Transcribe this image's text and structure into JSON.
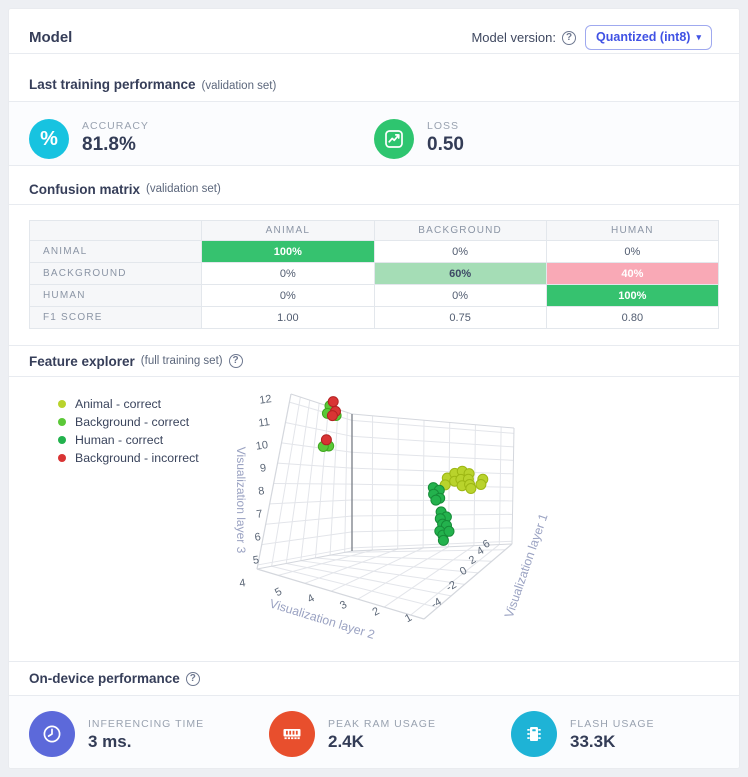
{
  "header": {
    "title": "Model",
    "version_label": "Model version:",
    "version_value": "Quantized (int8)"
  },
  "training": {
    "title": "Last training performance",
    "subtitle": "(validation set)"
  },
  "metrics": [
    {
      "label": "ACCURACY",
      "value": "81.8%",
      "icon": "percent-icon",
      "color": "#17c3e0"
    },
    {
      "label": "LOSS",
      "value": "0.50",
      "icon": "line-chart-icon",
      "color": "#2ec56f"
    }
  ],
  "confusion": {
    "title": "Confusion matrix",
    "subtitle": "(validation set)",
    "columns": [
      "ANIMAL",
      "BACKGROUND",
      "HUMAN"
    ],
    "rows": [
      {
        "label": "ANIMAL",
        "cells": [
          {
            "text": "100%",
            "tone": "green"
          },
          {
            "text": "0%",
            "tone": "plain"
          },
          {
            "text": "0%",
            "tone": "plain"
          }
        ]
      },
      {
        "label": "BACKGROUND",
        "cells": [
          {
            "text": "0%",
            "tone": "plain"
          },
          {
            "text": "60%",
            "tone": "lightgreen"
          },
          {
            "text": "40%",
            "tone": "pink"
          }
        ]
      },
      {
        "label": "HUMAN",
        "cells": [
          {
            "text": "0%",
            "tone": "plain"
          },
          {
            "text": "0%",
            "tone": "plain"
          },
          {
            "text": "100%",
            "tone": "green"
          }
        ]
      },
      {
        "label": "F1 SCORE",
        "cells": [
          {
            "text": "1.00",
            "tone": "plain"
          },
          {
            "text": "0.75",
            "tone": "plain"
          },
          {
            "text": "0.80",
            "tone": "plain"
          }
        ]
      }
    ]
  },
  "feature_explorer": {
    "title": "Feature explorer",
    "subtitle": "(full training set)"
  },
  "device": {
    "title": "On-device performance",
    "metrics": [
      {
        "label": "INFERENCING TIME",
        "value": "3 ms.",
        "icon": "clock-icon",
        "color": "#5c69da"
      },
      {
        "label": "PEAK RAM USAGE",
        "value": "2.4K",
        "icon": "ram-icon",
        "color": "#e84f2d"
      },
      {
        "label": "FLASH USAGE",
        "value": "33.3K",
        "icon": "flash-chip-icon",
        "color": "#1eb3d6"
      }
    ]
  },
  "chart_data": {
    "type": "scatter3d",
    "xlabel": "Visualization layer 1",
    "ylabel": "Visualization layer 2",
    "zlabel": "Visualization layer 3",
    "x_ticks": [
      -4,
      -2,
      0,
      2,
      4,
      6
    ],
    "y_ticks": [
      5,
      4,
      3,
      2,
      1
    ],
    "z_ticks": [
      12,
      11,
      10,
      9,
      8,
      7,
      6,
      5,
      4
    ],
    "series": [
      {
        "name": "Animal - correct",
        "color": "#b9d32c",
        "stroke": "#9db714",
        "points": [
          [
            3.5,
            1.2,
            9.0
          ],
          [
            4.3,
            1.1,
            9.25
          ],
          [
            5.1,
            1.0,
            9.35
          ],
          [
            5.8,
            0.9,
            9.15
          ],
          [
            3.9,
            1.0,
            8.8
          ],
          [
            4.7,
            0.95,
            8.85
          ],
          [
            5.5,
            0.85,
            8.8
          ],
          [
            6.6,
            0.55,
            8.7
          ],
          [
            4.3,
            0.8,
            8.5
          ],
          [
            5.1,
            0.7,
            8.5
          ],
          [
            6.1,
            0.5,
            8.4
          ],
          [
            4.7,
            0.55,
            8.3
          ],
          [
            3.6,
            1.3,
            8.55
          ]
        ]
      },
      {
        "name": "Background - correct",
        "color": "#5bc838",
        "stroke": "#3fa81f",
        "points": [
          [
            -3.5,
            4.6,
            12.2
          ],
          [
            -3.8,
            4.6,
            11.8
          ],
          [
            -2.1,
            4.6,
            11.8
          ],
          [
            -2.75,
            4.6,
            10.2
          ],
          [
            -3.7,
            4.6,
            10.15
          ]
        ]
      },
      {
        "name": "Human - correct",
        "color": "#23b24d",
        "stroke": "#168c38",
        "points": [
          [
            2.5,
            1.5,
            8.45
          ],
          [
            3.5,
            1.5,
            8.2
          ],
          [
            2.6,
            1.5,
            8.05
          ],
          [
            3.6,
            1.5,
            7.7
          ],
          [
            3.0,
            1.5,
            7.65
          ],
          [
            3.1,
            1.3,
            6.95
          ],
          [
            3.95,
            1.3,
            6.5
          ],
          [
            3.0,
            1.3,
            6.55
          ],
          [
            3.4,
            1.3,
            6.15
          ],
          [
            4.0,
            1.3,
            5.95
          ],
          [
            3.0,
            1.3,
            5.8
          ],
          [
            3.5,
            1.3,
            5.45
          ],
          [
            4.4,
            1.3,
            5.5
          ],
          [
            3.6,
            1.3,
            5.1
          ]
        ]
      },
      {
        "name": "Background - incorrect",
        "color": "#d93434",
        "stroke": "#b32222",
        "points": [
          [
            -3.0,
            4.6,
            12.45
          ],
          [
            -2.3,
            4.6,
            12.0
          ],
          [
            -2.8,
            4.6,
            11.75
          ],
          [
            -3.3,
            4.6,
            10.5
          ]
        ]
      }
    ]
  }
}
